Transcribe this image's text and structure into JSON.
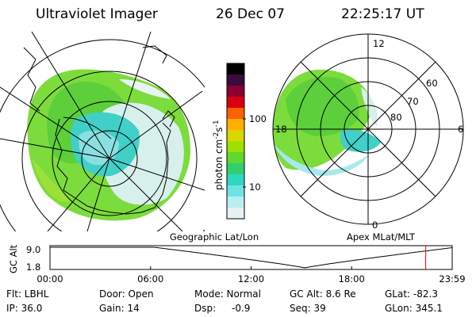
{
  "header": {
    "title": "Ultraviolet Imager",
    "date": "26 Dec 07",
    "time": "22:25:17 UT"
  },
  "colorbar": {
    "unit": "photon cm",
    "unit_sup1": "-2",
    "unit_mid": "s",
    "unit_sup2": "-1",
    "tick_100": "100",
    "tick_10": "10",
    "colors": [
      "#000000",
      "#1a0a2a",
      "#3d0a3d",
      "#7a0030",
      "#b00018",
      "#e00000",
      "#ff5000",
      "#ffa000",
      "#d8d800",
      "#a0e000",
      "#40d040",
      "#30e0b0",
      "#60e8e8",
      "#c0f0f0",
      "#e8f4f8"
    ]
  },
  "geo_panel": {
    "label": "Geographic Lat/Lon"
  },
  "apex_panel": {
    "label": "Apex MLat/MLT",
    "mlt_12": "12",
    "mlt_18": "18",
    "mlt_6": "6",
    "mlt_0": "0",
    "lat_60": "60",
    "lat_70": "70",
    "lat_80": "80"
  },
  "altitude_plot": {
    "ylabel": "GC Alt",
    "y_top": "9.0",
    "y_bottom": "1.8",
    "x_ticks": [
      "00:00",
      "06:00",
      "12:00",
      "18:00",
      "23:59"
    ],
    "current_marker_hour": 22.42,
    "orbit_min_hour": 15.2
  },
  "info": {
    "flt": "Flt: LBHL",
    "ip": "IP: 36.0",
    "door": "Door: Open",
    "gain": "Gain: 14",
    "mode": "Mode: Normal",
    "dsp_label": "Dsp:",
    "dsp_value": "-0.9",
    "gc_alt": "GC Alt: 8.6 Re",
    "seq": "Seq: 39",
    "glat": "GLat: -82.3",
    "glon": "GLon: 345.1"
  }
}
